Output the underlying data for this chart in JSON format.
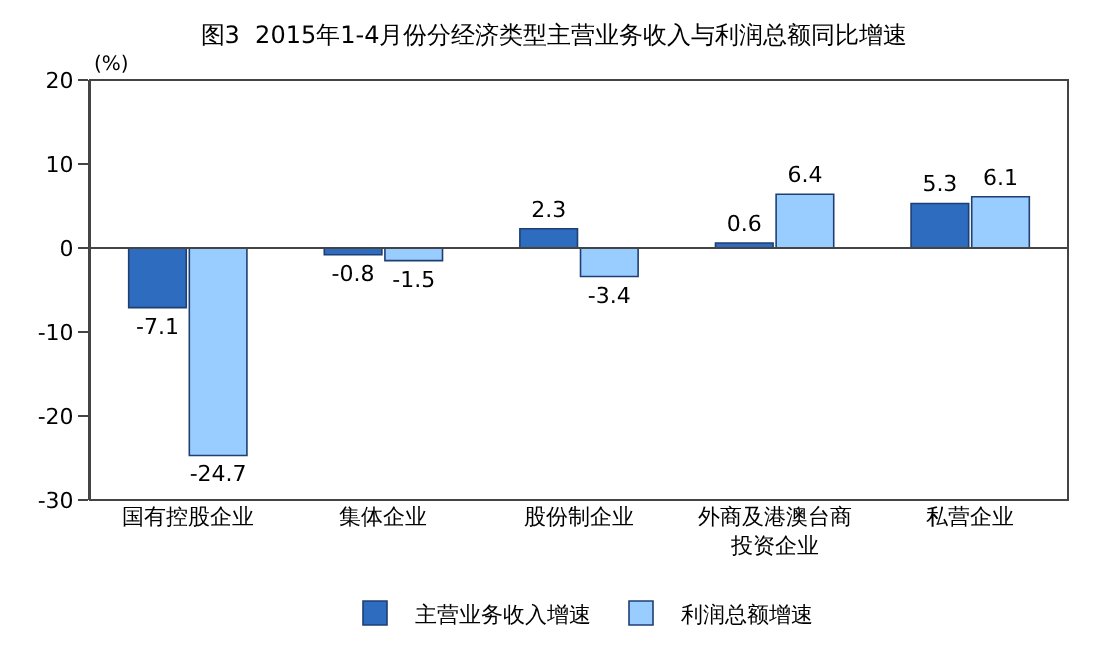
{
  "chart_data": {
    "type": "bar",
    "title": "图3  2015年1-4月份分经济类型主营业务收入与利润总额同比增速",
    "ylabel": "(%)",
    "categories": [
      "国有控股企业",
      "集体企业",
      "股份制企业",
      "外商及港澳台商投资企业",
      "私营企业"
    ],
    "series": [
      {
        "name": "主营业务收入增速",
        "color": "#2e6cc0",
        "values": [
          -7.1,
          -0.8,
          2.3,
          0.6,
          5.3
        ]
      },
      {
        "name": "利润总额增速",
        "color": "#99ccff",
        "values": [
          -24.7,
          -1.5,
          -3.4,
          6.4,
          6.1
        ]
      }
    ],
    "ylim": [
      -30,
      20
    ],
    "yticks": [
      -30,
      -20,
      -10,
      0,
      10,
      20
    ],
    "ref_lines": [
      {
        "axis": "y",
        "value": 0,
        "color": "#444444"
      }
    ],
    "legend": "bottom",
    "data_labels": true
  }
}
